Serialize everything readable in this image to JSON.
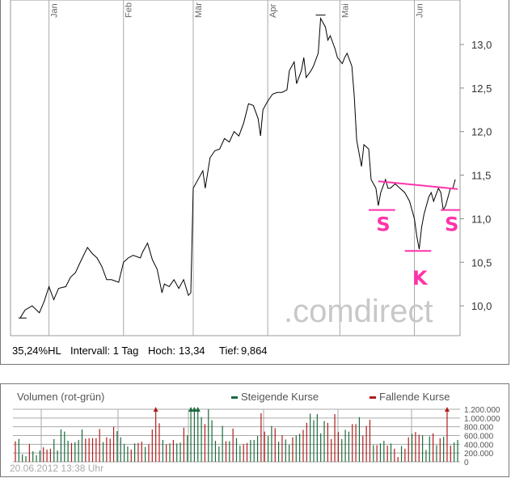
{
  "chart_data": [
    {
      "type": "line",
      "x_tick_labels": [
        "Jan",
        "Feb",
        "Mär",
        "Apr",
        "Mai",
        "Jun"
      ],
      "x_ticks": [
        "2012-01-01",
        "2012-02-01",
        "2012-03-01",
        "2012-04-01",
        "2012-05-01",
        "2012-06-01"
      ],
      "y_tick_labels": [
        "10,0",
        "10,5",
        "11,0",
        "11,5",
        "12,0",
        "12,5",
        "13,0"
      ],
      "y_ticks": [
        10.0,
        10.5,
        11.0,
        11.5,
        12.0,
        12.5,
        13.0
      ],
      "ylim": [
        9.7,
        13.4
      ],
      "xlim": [
        "2011-12-16",
        "2012-06-20"
      ],
      "grid": true,
      "watermark": ".comdirect",
      "series": [
        {
          "color": "#000000",
          "points": [
            [
              "2011-12-20",
              9.86
            ],
            [
              "2011-12-22",
              9.95
            ],
            [
              "2011-12-25",
              10.0
            ],
            [
              "2011-12-28",
              9.92
            ],
            [
              "2011-12-30",
              10.05
            ],
            [
              "2012-01-01",
              10.22
            ],
            [
              "2012-01-03",
              10.07
            ],
            [
              "2012-01-05",
              10.2
            ],
            [
              "2012-01-08",
              10.22
            ],
            [
              "2012-01-10",
              10.33
            ],
            [
              "2012-01-12",
              10.38
            ],
            [
              "2012-01-14",
              10.5
            ],
            [
              "2012-01-17",
              10.67
            ],
            [
              "2012-01-19",
              10.6
            ],
            [
              "2012-01-21",
              10.55
            ],
            [
              "2012-01-23",
              10.45
            ],
            [
              "2012-01-25",
              10.3
            ],
            [
              "2012-01-27",
              10.3
            ],
            [
              "2012-01-30",
              10.27
            ],
            [
              "2012-02-01",
              10.5
            ],
            [
              "2012-02-03",
              10.55
            ],
            [
              "2012-02-05",
              10.58
            ],
            [
              "2012-02-08",
              10.55
            ],
            [
              "2012-02-09",
              10.62
            ],
            [
              "2012-02-11",
              10.72
            ],
            [
              "2012-02-13",
              10.53
            ],
            [
              "2012-02-15",
              10.42
            ],
            [
              "2012-02-17",
              10.15
            ],
            [
              "2012-02-18",
              10.25
            ],
            [
              "2012-02-20",
              10.22
            ],
            [
              "2012-02-22",
              10.3
            ],
            [
              "2012-02-24",
              10.2
            ],
            [
              "2012-02-26",
              10.3
            ],
            [
              "2012-02-28",
              10.12
            ],
            [
              "2012-02-29",
              10.15
            ],
            [
              "2012-03-01",
              11.35
            ],
            [
              "2012-03-03",
              11.45
            ],
            [
              "2012-03-05",
              11.55
            ],
            [
              "2012-03-06",
              11.35
            ],
            [
              "2012-03-08",
              11.7
            ],
            [
              "2012-03-10",
              11.78
            ],
            [
              "2012-03-12",
              11.8
            ],
            [
              "2012-03-14",
              11.92
            ],
            [
              "2012-03-16",
              11.88
            ],
            [
              "2012-03-18",
              12.0
            ],
            [
              "2012-03-20",
              11.95
            ],
            [
              "2012-03-22",
              12.1
            ],
            [
              "2012-03-24",
              12.32
            ],
            [
              "2012-03-26",
              12.3
            ],
            [
              "2012-03-28",
              12.15
            ],
            [
              "2012-03-29",
              11.95
            ],
            [
              "2012-03-30",
              12.25
            ],
            [
              "2012-04-01",
              12.35
            ],
            [
              "2012-04-03",
              12.43
            ],
            [
              "2012-04-05",
              12.45
            ],
            [
              "2012-04-07",
              12.45
            ],
            [
              "2012-04-09",
              12.48
            ],
            [
              "2012-04-10",
              12.7
            ],
            [
              "2012-04-12",
              12.8
            ],
            [
              "2012-04-13",
              12.55
            ],
            [
              "2012-04-15",
              12.7
            ],
            [
              "2012-04-16",
              12.85
            ],
            [
              "2012-04-17",
              12.62
            ],
            [
              "2012-04-19",
              12.7
            ],
            [
              "2012-04-20",
              12.75
            ],
            [
              "2012-04-22",
              12.9
            ],
            [
              "2012-04-23",
              13.3
            ],
            [
              "2012-04-25",
              13.2
            ],
            [
              "2012-04-26",
              13.05
            ],
            [
              "2012-04-27",
              13.1
            ],
            [
              "2012-04-29",
              12.95
            ],
            [
              "2012-04-30",
              12.85
            ],
            [
              "2012-05-02",
              12.78
            ],
            [
              "2012-05-03",
              12.85
            ],
            [
              "2012-05-04",
              12.9
            ],
            [
              "2012-05-06",
              12.75
            ],
            [
              "2012-05-07",
              12.4
            ],
            [
              "2012-05-08",
              11.9
            ],
            [
              "2012-05-10",
              11.6
            ],
            [
              "2012-05-11",
              11.85
            ],
            [
              "2012-05-13",
              11.8
            ],
            [
              "2012-05-14",
              11.45
            ],
            [
              "2012-05-16",
              11.35
            ],
            [
              "2012-05-17",
              11.15
            ],
            [
              "2012-05-18",
              11.3
            ],
            [
              "2012-05-20",
              11.45
            ],
            [
              "2012-05-21",
              11.35
            ],
            [
              "2012-05-22",
              11.35
            ],
            [
              "2012-05-24",
              11.4
            ],
            [
              "2012-05-26",
              11.35
            ],
            [
              "2012-05-28",
              11.3
            ],
            [
              "2012-05-30",
              11.2
            ],
            [
              "2012-06-01",
              11.0
            ],
            [
              "2012-06-02",
              10.8
            ],
            [
              "2012-06-03",
              10.65
            ],
            [
              "2012-06-04",
              10.9
            ],
            [
              "2012-06-05",
              11.05
            ],
            [
              "2012-06-07",
              11.25
            ],
            [
              "2012-06-08",
              11.3
            ],
            [
              "2012-06-09",
              11.2
            ],
            [
              "2012-06-11",
              11.35
            ],
            [
              "2012-06-12",
              11.3
            ],
            [
              "2012-06-13",
              11.1
            ],
            [
              "2012-06-14",
              11.15
            ],
            [
              "2012-06-16",
              11.35
            ],
            [
              "2012-06-17",
              11.35
            ],
            [
              "2012-06-18",
              11.45
            ]
          ]
        }
      ],
      "annotations": {
        "color": "#ff33aa",
        "trendline": [
          [
            "2012-05-17",
            11.43
          ],
          [
            "2012-06-19",
            11.34
          ]
        ],
        "levels": [
          {
            "label": "S",
            "from": "2012-05-13",
            "to": "2012-05-24",
            "y": 11.1
          },
          {
            "label": "K",
            "from": "2012-05-28",
            "to": "2012-06-08",
            "y": 10.63
          },
          {
            "label": "S",
            "from": "2012-06-12",
            "to": "2012-06-20",
            "y": 11.1
          }
        ]
      }
    },
    {
      "type": "bar",
      "title": "Volumen (rot-grün)",
      "legend": [
        {
          "label": "Steigende Kurse",
          "color": "#1a6b3c"
        },
        {
          "label": "Fallende Kurse",
          "color": "#b01c1c"
        }
      ],
      "y_tick_labels": [
        "1.200.000",
        "1.000.000",
        "800.000",
        "600.000",
        "400.000",
        "200.000",
        "0"
      ],
      "y_ticks": [
        1200000,
        1000000,
        800000,
        600000,
        400000,
        200000,
        0
      ],
      "ylim": [
        0,
        1200000
      ],
      "values_thousands": [
        [
          "r",
          470
        ],
        [
          "g",
          520
        ],
        [
          "g",
          170
        ],
        [
          "g",
          130
        ],
        [
          "r",
          410
        ],
        [
          "g",
          240
        ],
        [
          "g",
          150
        ],
        [
          "g",
          260
        ],
        [
          "r",
          330
        ],
        [
          "r",
          280
        ],
        [
          "r",
          300
        ],
        [
          "g",
          520
        ],
        [
          "g",
          260
        ],
        [
          "g",
          740
        ],
        [
          "g",
          690
        ],
        [
          "g",
          480
        ],
        [
          "r",
          430
        ],
        [
          "g",
          450
        ],
        [
          "g",
          500
        ],
        [
          "g",
          740
        ],
        [
          "r",
          530
        ],
        [
          "r",
          540
        ],
        [
          "r",
          540
        ],
        [
          "r",
          540
        ],
        [
          "r",
          750
        ],
        [
          "g",
          450
        ],
        [
          "r",
          560
        ],
        [
          "r",
          530
        ],
        [
          "r",
          800
        ],
        [
          "g",
          700
        ],
        [
          "g",
          560
        ],
        [
          "g",
          410
        ],
        [
          "g",
          350
        ],
        [
          "r",
          280
        ],
        [
          "g",
          420
        ],
        [
          "r",
          430
        ],
        [
          "r",
          460
        ],
        [
          "g",
          340
        ],
        [
          "r",
          400
        ],
        [
          "r",
          740
        ],
        [
          "r",
          1250
        ],
        [
          "r",
          880
        ],
        [
          "g",
          500
        ],
        [
          "r",
          400
        ],
        [
          "g",
          420
        ],
        [
          "r",
          500
        ],
        [
          "g",
          420
        ],
        [
          "g",
          440
        ],
        [
          "r",
          780
        ],
        [
          "g",
          610
        ],
        [
          "g",
          1250
        ],
        [
          "g",
          1250
        ],
        [
          "g",
          1250
        ],
        [
          "g",
          1020
        ],
        [
          "r",
          860
        ],
        [
          "g",
          1200
        ],
        [
          "g",
          950
        ],
        [
          "g",
          480
        ],
        [
          "g",
          350
        ],
        [
          "g",
          820
        ],
        [
          "r",
          470
        ],
        [
          "g",
          470
        ],
        [
          "r",
          760
        ],
        [
          "g",
          540
        ],
        [
          "g",
          370
        ],
        [
          "r",
          400
        ],
        [
          "r",
          430
        ],
        [
          "g",
          500
        ],
        [
          "g",
          500
        ],
        [
          "g",
          590
        ],
        [
          "r",
          1110
        ],
        [
          "r",
          690
        ],
        [
          "g",
          590
        ],
        [
          "g",
          820
        ],
        [
          "r",
          770
        ],
        [
          "g",
          460
        ],
        [
          "r",
          610
        ],
        [
          "g",
          510
        ],
        [
          "g",
          390
        ],
        [
          "r",
          560
        ],
        [
          "g",
          600
        ],
        [
          "g",
          640
        ],
        [
          "r",
          730
        ],
        [
          "r",
          890
        ],
        [
          "g",
          1100
        ],
        [
          "g",
          950
        ],
        [
          "g",
          1090
        ],
        [
          "g",
          650
        ],
        [
          "g",
          930
        ],
        [
          "r",
          890
        ],
        [
          "r",
          520
        ],
        [
          "r",
          1090
        ],
        [
          "r",
          680
        ],
        [
          "g",
          520
        ],
        [
          "g",
          730
        ],
        [
          "g",
          690
        ],
        [
          "r",
          860
        ],
        [
          "r",
          860
        ],
        [
          "g",
          1020
        ],
        [
          "r",
          600
        ],
        [
          "r",
          820
        ],
        [
          "r",
          960
        ],
        [
          "g",
          380
        ],
        [
          "r",
          380
        ],
        [
          "g",
          420
        ],
        [
          "g",
          480
        ],
        [
          "r",
          370
        ],
        [
          "g",
          420
        ],
        [
          "r",
          300
        ],
        [
          "r",
          110
        ],
        [
          "g",
          360
        ],
        [
          "r",
          300
        ],
        [
          "r",
          560
        ],
        [
          "g",
          640
        ],
        [
          "r",
          680
        ],
        [
          "r",
          620
        ],
        [
          "g",
          610
        ],
        [
          "g",
          270
        ],
        [
          "g",
          580
        ],
        [
          "r",
          650
        ],
        [
          "g",
          380
        ],
        [
          "r",
          540
        ],
        [
          "g",
          570
        ],
        [
          "r",
          1250
        ],
        [
          "r",
          370
        ],
        [
          "g",
          440
        ],
        [
          "g",
          500
        ]
      ]
    }
  ],
  "stats": {
    "hl": "35,24%HL",
    "interval": "Intervall: 1 Tag",
    "high_label": "Hoch:",
    "high": "13,34",
    "low_label": "Tief:",
    "low": "9,864"
  },
  "timestamp": "20.06.2012 13:38 Uhr"
}
